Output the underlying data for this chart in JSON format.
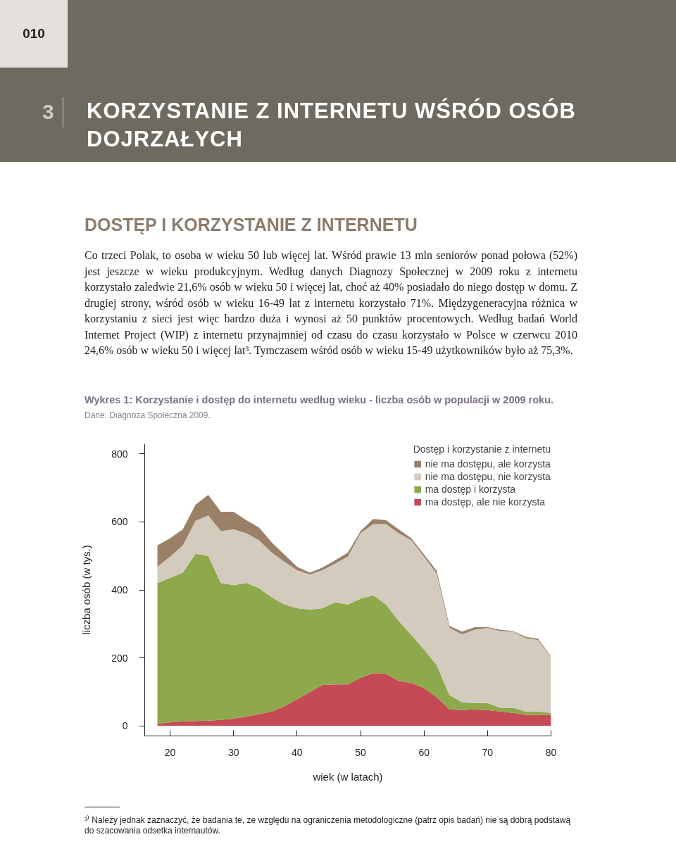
{
  "chart_data": {
    "type": "area",
    "stacked": true,
    "title": "Wykres 1: Korzystanie i dostęp do internetu według wieku - liczba osób w populacji w 2009 roku.",
    "subtitle": "Dane: Diagnoza Społeczna 2009.",
    "xlabel": "wiek (w latach)",
    "ylabel": "liczba osób (w tys.)",
    "legend_title": "Dostęp i korzystanie z internetu",
    "legend": "top right",
    "grid": false,
    "x": [
      18,
      20,
      22,
      24,
      26,
      28,
      30,
      32,
      34,
      36,
      38,
      40,
      42,
      44,
      46,
      48,
      50,
      52,
      54,
      56,
      58,
      60,
      62,
      64,
      66,
      68,
      70,
      72,
      74,
      76,
      78,
      80
    ],
    "xlim": [
      16,
      80
    ],
    "xticks": [
      20,
      30,
      40,
      50,
      60,
      70,
      80
    ],
    "ylim": [
      -30,
      830
    ],
    "yticks": [
      0,
      200,
      400,
      600,
      800
    ],
    "series": [
      {
        "name": "ma dostęp, ale nie korzysta",
        "color": "#c64a55",
        "values": [
          6,
          10,
          13,
          14,
          15,
          17,
          21,
          27,
          34,
          42,
          57,
          78,
          99,
          120,
          122,
          122,
          141,
          155,
          153,
          132,
          126,
          111,
          84,
          48,
          46,
          48,
          46,
          42,
          38,
          32,
          32,
          32
        ]
      },
      {
        "name": "ma dostęp i korzysta",
        "color": "#8ea84c",
        "values": [
          414,
          425,
          438,
          492,
          485,
          403,
          393,
          393,
          371,
          336,
          300,
          268,
          243,
          226,
          241,
          235,
          233,
          229,
          204,
          177,
          141,
          114,
          94,
          42,
          23,
          19,
          21,
          11,
          15,
          10,
          10,
          6
        ]
      },
      {
        "name": "nie ma dostępu, nie korzysta",
        "color": "#d4cbbf",
        "values": [
          48,
          63,
          80,
          97,
          119,
          153,
          164,
          147,
          141,
          132,
          126,
          112,
          103,
          112,
          114,
          141,
          193,
          210,
          237,
          258,
          279,
          273,
          269,
          198,
          200,
          216,
          221,
          226,
          224,
          216,
          210,
          164
        ]
      },
      {
        "name": "nie ma dostępu, ale korzysta",
        "color": "#9b8068",
        "values": [
          63,
          54,
          47,
          48,
          61,
          57,
          52,
          38,
          38,
          30,
          21,
          10,
          6,
          8,
          10,
          12,
          6,
          15,
          11,
          11,
          6,
          6,
          9,
          6,
          8,
          7,
          2,
          4,
          2,
          4,
          4,
          2
        ]
      }
    ],
    "annotations": [
      "010",
      "3",
      "KORZYSTANIE Z INTERNETU WŚRÓD OSÓB DOJRZAŁYCH",
      "DOSTĘP I KORZYSTANIE Z INTERNETU",
      "Co trzeci Polak, to osoba w wieku 50 lub więcej lat. Wśród prawie 13 mln seniorów ponad połowa (52%) jest jeszcze w wieku produkcyjnym. Według danych Diagnozy Społecznej w 2009 roku z internetu korzystało zaledwie 21,6% osób w wieku 50 i więcej lat, choć aż 40% posiadało do niego dostęp w domu. Z drugiej strony, wśród osób w wieku 16-49 lat z internetu korzystało 71%. Międzygeneracyjna różnica w korzystaniu z sieci jest więc bardzo duża i wynosi aż 50 punktów procentowych. Według badań World Internet Project (WIP) z internetu przynajmniej od czasu do czasu korzystało w Polsce w czerwcu 2010 24,6% osób w wieku 50 i więcej lat³. Tymczasem wśród osób w wieku 15-49 użytkowników było aż 75,3%.",
      "³⁾ Należy jednak zaznaczyć, że badania te, ze względu na ograniczenia metodologiczne (patrz opis badań) nie są dobrą podstawą do szacowania odsetka internautów."
    ]
  }
}
